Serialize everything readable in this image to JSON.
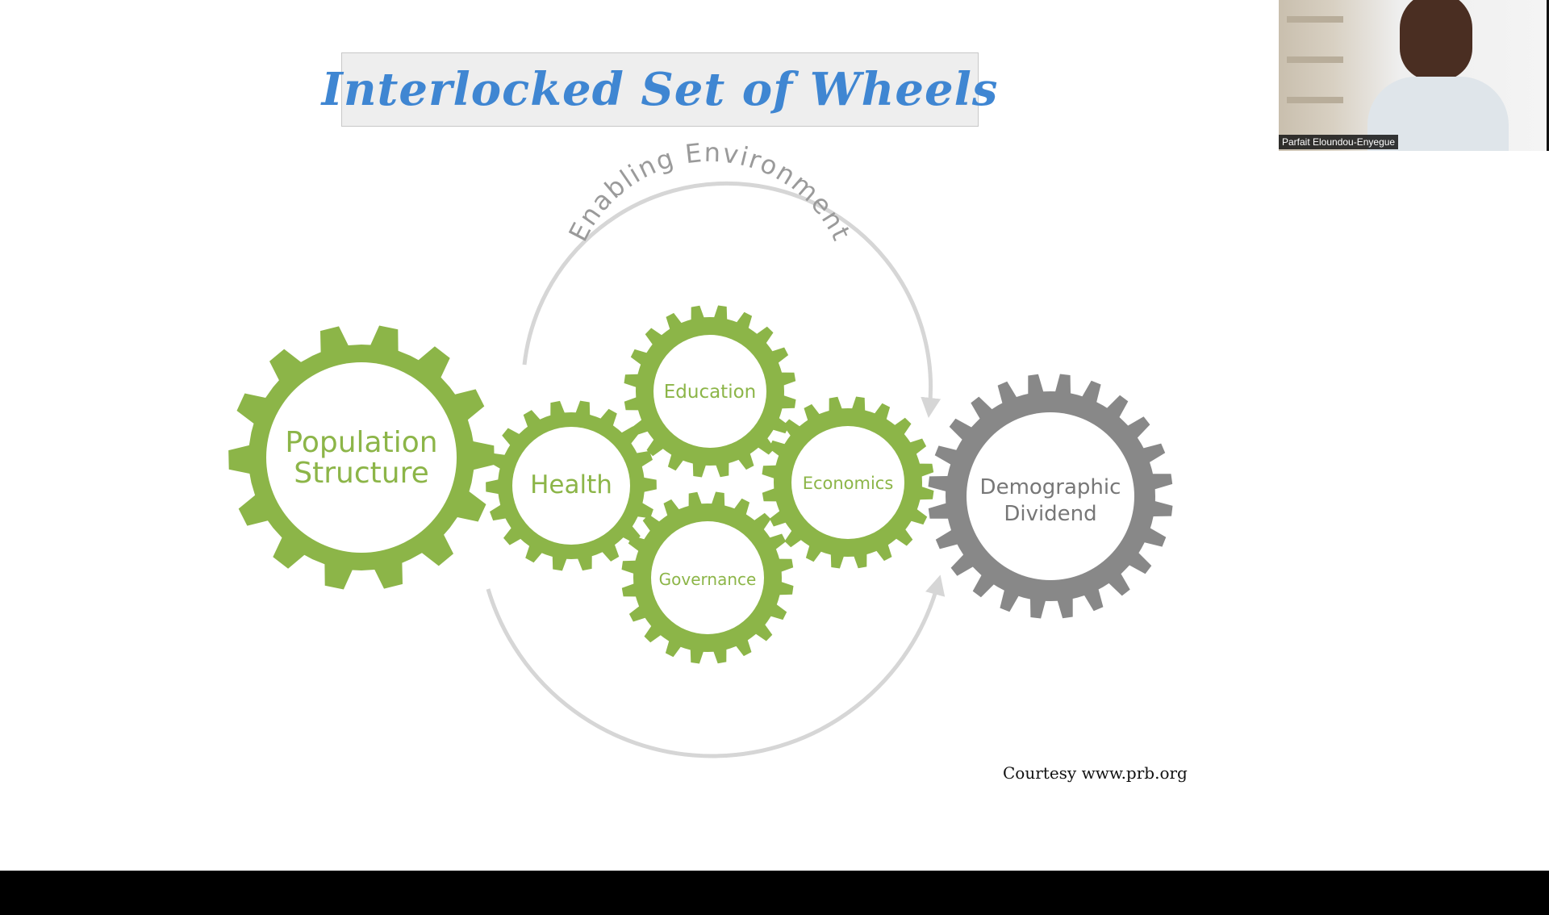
{
  "slide": {
    "title": "Interlocked Set of Wheels",
    "courtesy": "Courtesy www.prb.org"
  },
  "diagram": {
    "arc_label": "Enabling Environment",
    "colors": {
      "green_gear": "#8cb548",
      "green_text": "#8cb548",
      "gray_gear": "#888888",
      "gray_text": "#777777",
      "arrow": "#d6d6d6"
    },
    "gears": {
      "population": [
        "Population",
        "Structure"
      ],
      "health": "Health",
      "education": "Education",
      "governance": "Governance",
      "economics": "Economics",
      "dividend": [
        "Demographic",
        "Dividend"
      ]
    }
  },
  "video": {
    "participant_name": "Parfait Eloundou-Enyegue"
  }
}
